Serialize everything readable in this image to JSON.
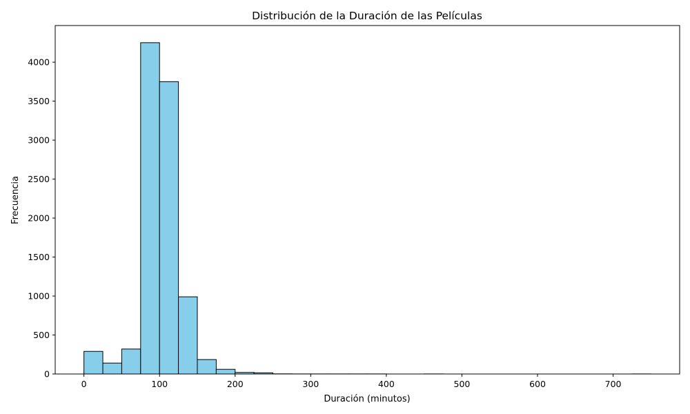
{
  "chart_data": {
    "type": "bar",
    "subtype": "histogram",
    "title": "Distribución de la Duración de las Películas",
    "xlabel": "Duración (minutos)",
    "ylabel": "Frecuencia",
    "xlim": [
      -38,
      788
    ],
    "ylim": [
      0,
      4470
    ],
    "xticks": [
      0,
      100,
      200,
      300,
      400,
      500,
      600,
      700
    ],
    "yticks": [
      0,
      500,
      1000,
      1500,
      2000,
      2500,
      3000,
      3500,
      4000
    ],
    "bin_width": 25,
    "bin_edges": [
      0,
      25,
      50,
      75,
      100,
      125,
      150,
      175,
      200,
      225,
      250,
      275,
      300,
      325,
      350,
      375,
      400,
      425,
      450,
      475,
      500,
      525,
      550,
      575,
      600,
      625,
      650,
      675,
      700,
      725,
      750
    ],
    "values": [
      290,
      140,
      320,
      4250,
      3750,
      990,
      185,
      60,
      20,
      15,
      2,
      1,
      1,
      1,
      1,
      1,
      0,
      0,
      1,
      0,
      0,
      0,
      0,
      0,
      0,
      0,
      0,
      0,
      0,
      1
    ],
    "grid": false,
    "colors": {
      "bar_fill": "#87CEEB",
      "bar_edge": "#000000",
      "axis": "#000000",
      "background": "#ffffff"
    }
  }
}
